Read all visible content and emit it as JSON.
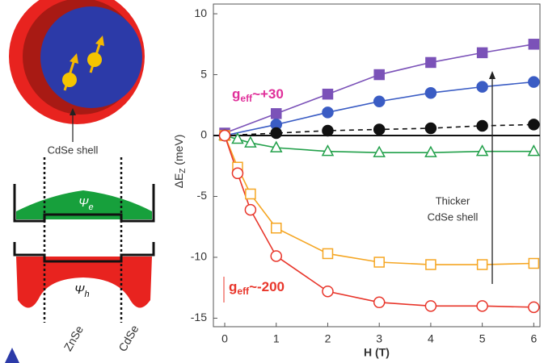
{
  "chart_data": {
    "type": "line",
    "x_label": "H (T)",
    "y_label": {
      "base": "ΔE",
      "sub": "Z",
      "rest": " (meV)"
    },
    "xlim": [
      -0.22,
      6.12
    ],
    "ylim": [
      -15.7,
      10.8
    ],
    "xticks": [
      0,
      1,
      2,
      3,
      4,
      5,
      6
    ],
    "yticks": [
      -15,
      -10,
      -5,
      0,
      5,
      10
    ],
    "series": [
      {
        "color": "#7b52b8",
        "marker": "square",
        "filled": true,
        "dashed": false,
        "x": [
          0,
          1,
          2,
          3,
          4,
          5,
          6
        ],
        "values": [
          0.2,
          1.8,
          3.4,
          5.0,
          6.0,
          6.8,
          7.5
        ]
      },
      {
        "color": "#3a5cc4",
        "marker": "circle",
        "filled": true,
        "dashed": false,
        "x": [
          0,
          1,
          2,
          3,
          4,
          5,
          6
        ],
        "values": [
          0,
          0.9,
          1.9,
          2.8,
          3.5,
          4.0,
          4.4
        ]
      },
      {
        "color": "#111111",
        "marker": "circle",
        "filled": true,
        "dashed": true,
        "x": [
          0,
          1,
          2,
          3,
          4,
          5,
          6
        ],
        "values": [
          0,
          0.2,
          0.4,
          0.5,
          0.6,
          0.8,
          0.9
        ]
      },
      {
        "color": "#22a04a",
        "marker": "triangle",
        "filled": false,
        "dashed": false,
        "x": [
          0,
          0.25,
          0.5,
          1,
          2,
          3,
          4,
          5,
          6
        ],
        "values": [
          0,
          -0.3,
          -0.6,
          -1.0,
          -1.3,
          -1.4,
          -1.4,
          -1.3,
          -1.3
        ]
      },
      {
        "color": "#f5a623",
        "marker": "square",
        "filled": false,
        "dashed": false,
        "x": [
          0,
          0.25,
          0.5,
          1,
          2,
          3,
          4,
          5,
          6
        ],
        "values": [
          0,
          -2.6,
          -4.8,
          -7.6,
          -9.7,
          -10.4,
          -10.6,
          -10.6,
          -10.5
        ]
      },
      {
        "color": "#e8352a",
        "marker": "circle",
        "filled": false,
        "dashed": false,
        "x": [
          0,
          0.25,
          0.5,
          1,
          2,
          3,
          4,
          5,
          6
        ],
        "values": [
          0,
          -3.1,
          -6.1,
          -9.9,
          -12.8,
          -13.7,
          -14.0,
          -14.0,
          -14.1
        ]
      }
    ],
    "annotations": [
      {
        "base": "g",
        "sub": "eff",
        "rest": "~+30",
        "color": "#e0309a"
      },
      {
        "base": "g",
        "sub": "eff",
        "rest": "~-200",
        "color": "#e8352a"
      }
    ],
    "arrow_label": [
      "Thicker",
      "CdSe shell"
    ]
  },
  "schematic": {
    "shell_label": "CdSe shell",
    "psi_e": {
      "base": "Ψ",
      "sub": "e"
    },
    "psi_h": {
      "base": "Ψ",
      "sub": "h"
    },
    "layer_labels": [
      "ZnSe",
      "CdSe"
    ]
  }
}
